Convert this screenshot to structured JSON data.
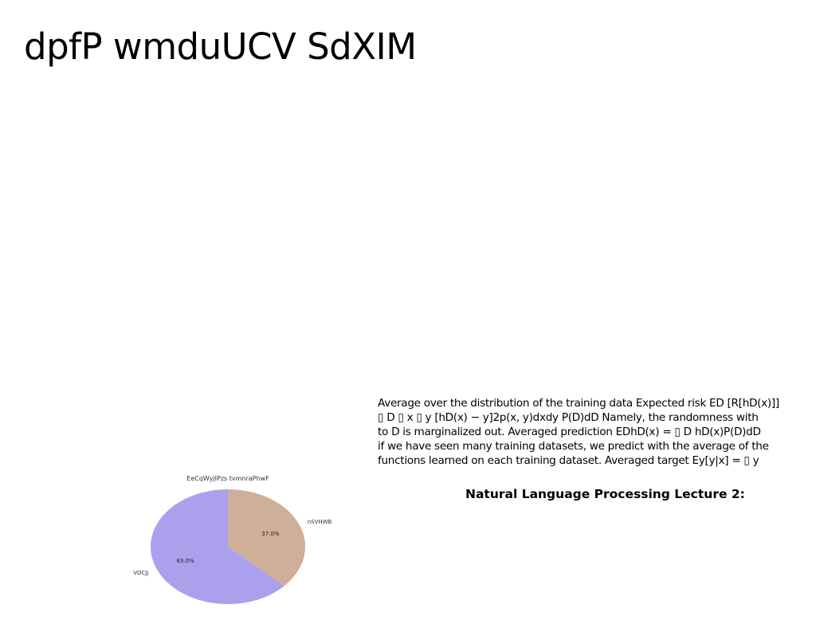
{
  "slide": {
    "title": "dpfP wmduUCV SdXIM",
    "body_lines": [
      "Average over the distribution of the training data Expected risk ED [R[hD(x)]]",
      "▯ D ▯ x ▯ y [hD(x) − y]2p(x, y)dxdy P(D)dD Namely, the randomness with",
      "to D is marginalized out. Averaged prediction EDhD(x) = ▯ D hD(x)P(D)dD",
      "if we have seen many training datasets, we predict with the average of the",
      "functions learned on each training dataset. Averaged target Ey[y|x] = ▯ y"
    ],
    "footer_caption": "Natural Language Processing Lecture 2:"
  },
  "chart_data": {
    "type": "pie",
    "title": "EeCqWyjIPzs tvmnraPhwF",
    "slices": [
      {
        "label": "nSVHWB",
        "value": 37.0,
        "display": "37.0%",
        "color": "#cfae9a"
      },
      {
        "label": "VOCJj",
        "value": 63.0,
        "display": "63.0%",
        "color": "#aba0ec"
      }
    ],
    "start_angle_deg": 90,
    "direction": "clockwise"
  }
}
